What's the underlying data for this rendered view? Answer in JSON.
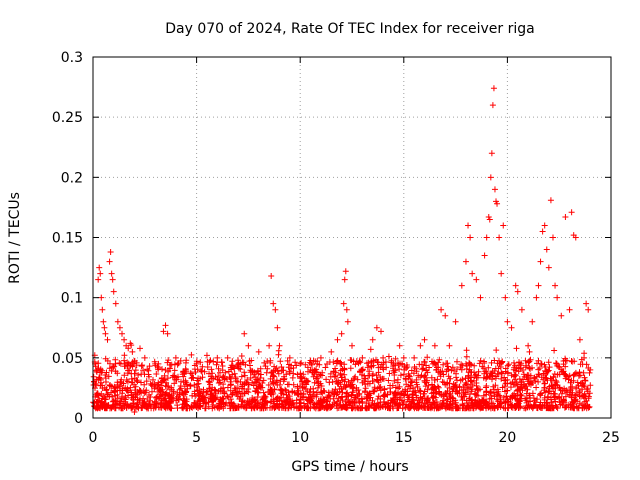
{
  "chart_data": {
    "type": "scatter",
    "title": "Day 070 of 2024, Rate Of TEC Index for receiver riga",
    "xlabel": "GPS time / hours",
    "ylabel": "ROTI / TECUs",
    "xlim": [
      0,
      25
    ],
    "ylim": [
      0,
      0.3
    ],
    "xticks": [
      "0",
      "5",
      "10",
      "15",
      "20",
      "25"
    ],
    "yticks": [
      "0",
      "0.05",
      "0.1",
      "0.15",
      "0.2",
      "0.25",
      "0.3"
    ],
    "grid": true,
    "marker": "+",
    "color": "#ff0000",
    "series": [
      {
        "name": "",
        "points": [
          [
            0.05,
            0.03
          ],
          [
            0.1,
            0.045
          ],
          [
            0.2,
            0.04
          ],
          [
            0.25,
            0.115
          ],
          [
            0.3,
            0.125
          ],
          [
            0.35,
            0.12
          ],
          [
            0.4,
            0.1
          ],
          [
            0.45,
            0.09
          ],
          [
            0.5,
            0.08
          ],
          [
            0.55,
            0.075
          ],
          [
            0.6,
            0.07
          ],
          [
            0.7,
            0.065
          ],
          [
            0.8,
            0.13
          ],
          [
            0.85,
            0.138
          ],
          [
            0.9,
            0.12
          ],
          [
            0.95,
            0.115
          ],
          [
            1.0,
            0.105
          ],
          [
            1.1,
            0.095
          ],
          [
            1.2,
            0.08
          ],
          [
            1.3,
            0.075
          ],
          [
            1.4,
            0.07
          ],
          [
            1.5,
            0.065
          ],
          [
            1.6,
            0.06
          ],
          [
            1.7,
            0.058
          ],
          [
            1.8,
            0.062
          ],
          [
            1.9,
            0.055
          ],
          [
            2.0,
            0.005
          ],
          [
            2.1,
            0.01
          ],
          [
            2.5,
            0.05
          ],
          [
            3.0,
            0.045
          ],
          [
            3.4,
            0.072
          ],
          [
            3.5,
            0.077
          ],
          [
            3.6,
            0.07
          ],
          [
            4.0,
            0.05
          ],
          [
            4.5,
            0.048
          ],
          [
            5.0,
            0.045
          ],
          [
            5.5,
            0.052
          ],
          [
            6.0,
            0.05
          ],
          [
            6.5,
            0.05
          ],
          [
            7.0,
            0.048
          ],
          [
            7.3,
            0.07
          ],
          [
            7.5,
            0.06
          ],
          [
            8.0,
            0.055
          ],
          [
            8.5,
            0.06
          ],
          [
            8.6,
            0.118
          ],
          [
            8.7,
            0.095
          ],
          [
            8.8,
            0.09
          ],
          [
            8.9,
            0.075
          ],
          [
            9.0,
            0.06
          ],
          [
            9.5,
            0.05
          ],
          [
            10.0,
            0.045
          ],
          [
            10.5,
            0.04
          ],
          [
            11.0,
            0.05
          ],
          [
            11.5,
            0.055
          ],
          [
            11.8,
            0.065
          ],
          [
            12.0,
            0.07
          ],
          [
            12.1,
            0.095
          ],
          [
            12.15,
            0.115
          ],
          [
            12.2,
            0.122
          ],
          [
            12.25,
            0.09
          ],
          [
            12.3,
            0.08
          ],
          [
            12.5,
            0.06
          ],
          [
            13.0,
            0.05
          ],
          [
            13.5,
            0.065
          ],
          [
            13.7,
            0.075
          ],
          [
            13.9,
            0.072
          ],
          [
            14.0,
            0.05
          ],
          [
            14.5,
            0.045
          ],
          [
            14.8,
            0.06
          ],
          [
            15.0,
            0.05
          ],
          [
            15.5,
            0.05
          ],
          [
            15.8,
            0.06
          ],
          [
            16.0,
            0.065
          ],
          [
            16.5,
            0.06
          ],
          [
            16.8,
            0.09
          ],
          [
            17.0,
            0.085
          ],
          [
            17.2,
            0.06
          ],
          [
            17.5,
            0.08
          ],
          [
            17.8,
            0.11
          ],
          [
            18.0,
            0.13
          ],
          [
            18.1,
            0.16
          ],
          [
            18.2,
            0.15
          ],
          [
            18.3,
            0.12
          ],
          [
            18.5,
            0.115
          ],
          [
            18.7,
            0.1
          ],
          [
            18.9,
            0.135
          ],
          [
            19.0,
            0.15
          ],
          [
            19.1,
            0.167
          ],
          [
            19.15,
            0.165
          ],
          [
            19.2,
            0.2
          ],
          [
            19.25,
            0.22
          ],
          [
            19.3,
            0.26
          ],
          [
            19.35,
            0.274
          ],
          [
            19.4,
            0.19
          ],
          [
            19.45,
            0.18
          ],
          [
            19.5,
            0.178
          ],
          [
            19.6,
            0.15
          ],
          [
            19.7,
            0.12
          ],
          [
            19.8,
            0.16
          ],
          [
            19.9,
            0.1
          ],
          [
            20.0,
            0.08
          ],
          [
            20.2,
            0.075
          ],
          [
            20.4,
            0.11
          ],
          [
            20.5,
            0.105
          ],
          [
            20.7,
            0.09
          ],
          [
            21.0,
            0.06
          ],
          [
            21.2,
            0.08
          ],
          [
            21.4,
            0.1
          ],
          [
            21.5,
            0.11
          ],
          [
            21.6,
            0.13
          ],
          [
            21.7,
            0.155
          ],
          [
            21.8,
            0.16
          ],
          [
            21.9,
            0.14
          ],
          [
            22.0,
            0.125
          ],
          [
            22.1,
            0.181
          ],
          [
            22.2,
            0.15
          ],
          [
            22.3,
            0.11
          ],
          [
            22.4,
            0.1
          ],
          [
            22.6,
            0.085
          ],
          [
            22.8,
            0.167
          ],
          [
            23.0,
            0.09
          ],
          [
            23.1,
            0.171
          ],
          [
            23.2,
            0.152
          ],
          [
            23.3,
            0.15
          ],
          [
            23.5,
            0.065
          ],
          [
            23.7,
            0.05
          ],
          [
            23.8,
            0.095
          ],
          [
            23.9,
            0.09
          ],
          [
            24.0,
            0.04
          ]
        ]
      }
    ]
  }
}
